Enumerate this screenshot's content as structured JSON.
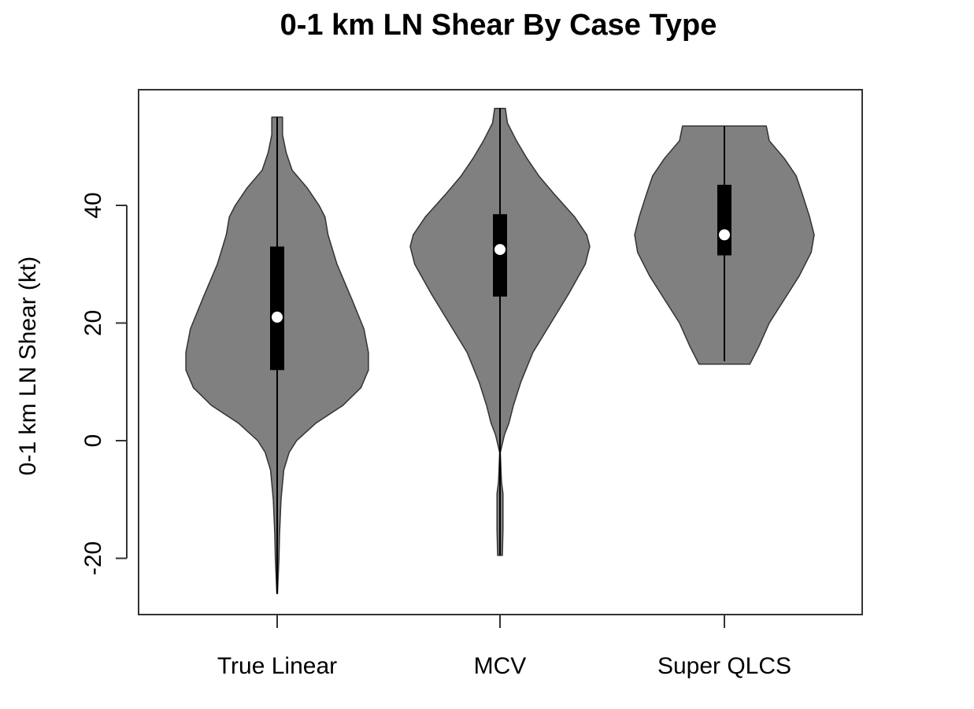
{
  "chart_data": {
    "type": "violin",
    "title": "0-1 km LN Shear By Case Type",
    "xlabel": "",
    "ylabel": "0-1 km LN Shear (kt)",
    "ylim": [
      -30,
      58
    ],
    "yticks": [
      -20,
      0,
      20,
      40
    ],
    "ytick_labels": [
      "-20",
      "0",
      "20",
      "40"
    ],
    "categories": [
      "True Linear",
      "MCV",
      "Super QLCS"
    ],
    "grid": false,
    "legend": "none",
    "colors": {
      "violin_fill": "#808080",
      "violin_stroke": "#333333",
      "box": "#000000",
      "median": "#ffffff",
      "frame": "#333333"
    },
    "series": [
      {
        "category": "True Linear",
        "min": -26,
        "q1": 12,
        "median": 21,
        "q3": 33,
        "max": 55,
        "density_profile": [
          [
            -26,
            0.1
          ],
          [
            -20,
            0.6
          ],
          [
            -16,
            0.8
          ],
          [
            -10,
            1.3
          ],
          [
            -5,
            2.2
          ],
          [
            -2,
            4
          ],
          [
            0,
            6.5
          ],
          [
            3,
            13
          ],
          [
            6,
            22
          ],
          [
            9,
            28
          ],
          [
            12,
            30.5
          ],
          [
            15,
            30.5
          ],
          [
            19,
            29
          ],
          [
            24,
            25
          ],
          [
            30,
            20
          ],
          [
            35,
            17
          ],
          [
            38,
            16
          ],
          [
            40,
            14
          ],
          [
            43,
            10
          ],
          [
            46,
            5
          ],
          [
            49,
            3
          ],
          [
            52,
            1.8
          ],
          [
            55,
            1.8
          ]
        ]
      },
      {
        "category": "MCV",
        "min": -19.5,
        "q1": 24.5,
        "median": 32.5,
        "q3": 38.5,
        "max": 56.5,
        "density_profile": [
          [
            -19.5,
            0.8
          ],
          [
            -15,
            1
          ],
          [
            -9,
            1
          ],
          [
            -7,
            0.5
          ],
          [
            -2,
            0.1
          ],
          [
            1,
            1.5
          ],
          [
            3,
            3
          ],
          [
            6,
            4.5
          ],
          [
            10,
            7
          ],
          [
            15,
            11
          ],
          [
            20,
            17
          ],
          [
            25,
            23
          ],
          [
            30,
            28.5
          ],
          [
            33,
            30
          ],
          [
            35,
            29
          ],
          [
            38,
            25
          ],
          [
            42,
            18
          ],
          [
            45,
            13
          ],
          [
            48,
            9
          ],
          [
            51,
            5.5
          ],
          [
            54,
            2.5
          ],
          [
            56.5,
            1.8
          ]
        ]
      },
      {
        "category": "Super QLCS",
        "min": 13.5,
        "q1": 31.5,
        "median": 35,
        "q3": 43.5,
        "max": 53.5,
        "density_profile": [
          [
            13,
            8.5
          ],
          [
            16,
            11.5
          ],
          [
            20,
            15
          ],
          [
            24,
            20
          ],
          [
            28,
            25
          ],
          [
            32,
            29
          ],
          [
            35,
            30
          ],
          [
            38,
            28.5
          ],
          [
            42,
            26
          ],
          [
            45,
            24
          ],
          [
            48,
            20
          ],
          [
            51,
            15
          ],
          [
            53.5,
            14
          ]
        ]
      }
    ]
  }
}
